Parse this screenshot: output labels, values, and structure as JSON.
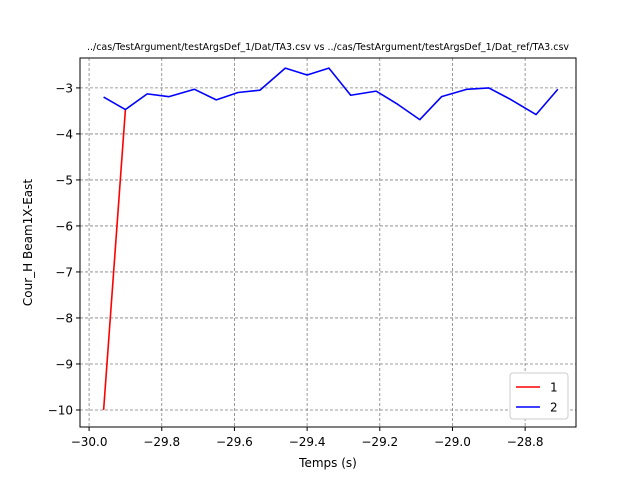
{
  "chart_data": {
    "type": "line",
    "title": "../cas/TestArgument/testArgsDef_1/Dat/TA3.csv vs ../cas/TestArgument/testArgsDef_1/Dat_ref/TA3.csv",
    "xlabel": "Temps (s)",
    "ylabel": "Cour_H Beam1X-East",
    "xlim": [
      -30.025,
      -28.66
    ],
    "ylim": [
      -10.37,
      -2.35
    ],
    "xticks": [
      -30.0,
      -29.8,
      -29.6,
      -29.4,
      -29.2,
      -29.0,
      -28.8
    ],
    "xtick_labels": [
      "−30.0",
      "−29.8",
      "−29.6",
      "−29.4",
      "−29.2",
      "−29.0",
      "−28.8"
    ],
    "yticks": [
      -10,
      -9,
      -8,
      -7,
      -6,
      -5,
      -4,
      -3
    ],
    "ytick_labels": [
      "−10",
      "−9",
      "−8",
      "−7",
      "−6",
      "−5",
      "−4",
      "−3"
    ],
    "grid": true,
    "legend_position": "bottom-right",
    "series": [
      {
        "name": "1",
        "color": "#ff0000",
        "x": [
          -29.96,
          -29.9
        ],
        "y": [
          -10.0,
          -3.47
        ]
      },
      {
        "name": "2",
        "color": "#0000ff",
        "x": [
          -29.96,
          -29.9,
          -29.84,
          -29.78,
          -29.71,
          -29.65,
          -29.59,
          -29.53,
          -29.46,
          -29.4,
          -29.34,
          -29.28,
          -29.21,
          -29.15,
          -29.09,
          -29.03,
          -28.96,
          -28.9,
          -28.84,
          -28.77,
          -28.71
        ],
        "y": [
          -3.2,
          -3.47,
          -3.13,
          -3.19,
          -3.03,
          -3.26,
          -3.1,
          -3.05,
          -2.57,
          -2.72,
          -2.57,
          -3.16,
          -3.07,
          -3.36,
          -3.69,
          -3.19,
          -3.03,
          -3.0,
          -3.25,
          -3.58,
          -3.03
        ]
      }
    ]
  }
}
